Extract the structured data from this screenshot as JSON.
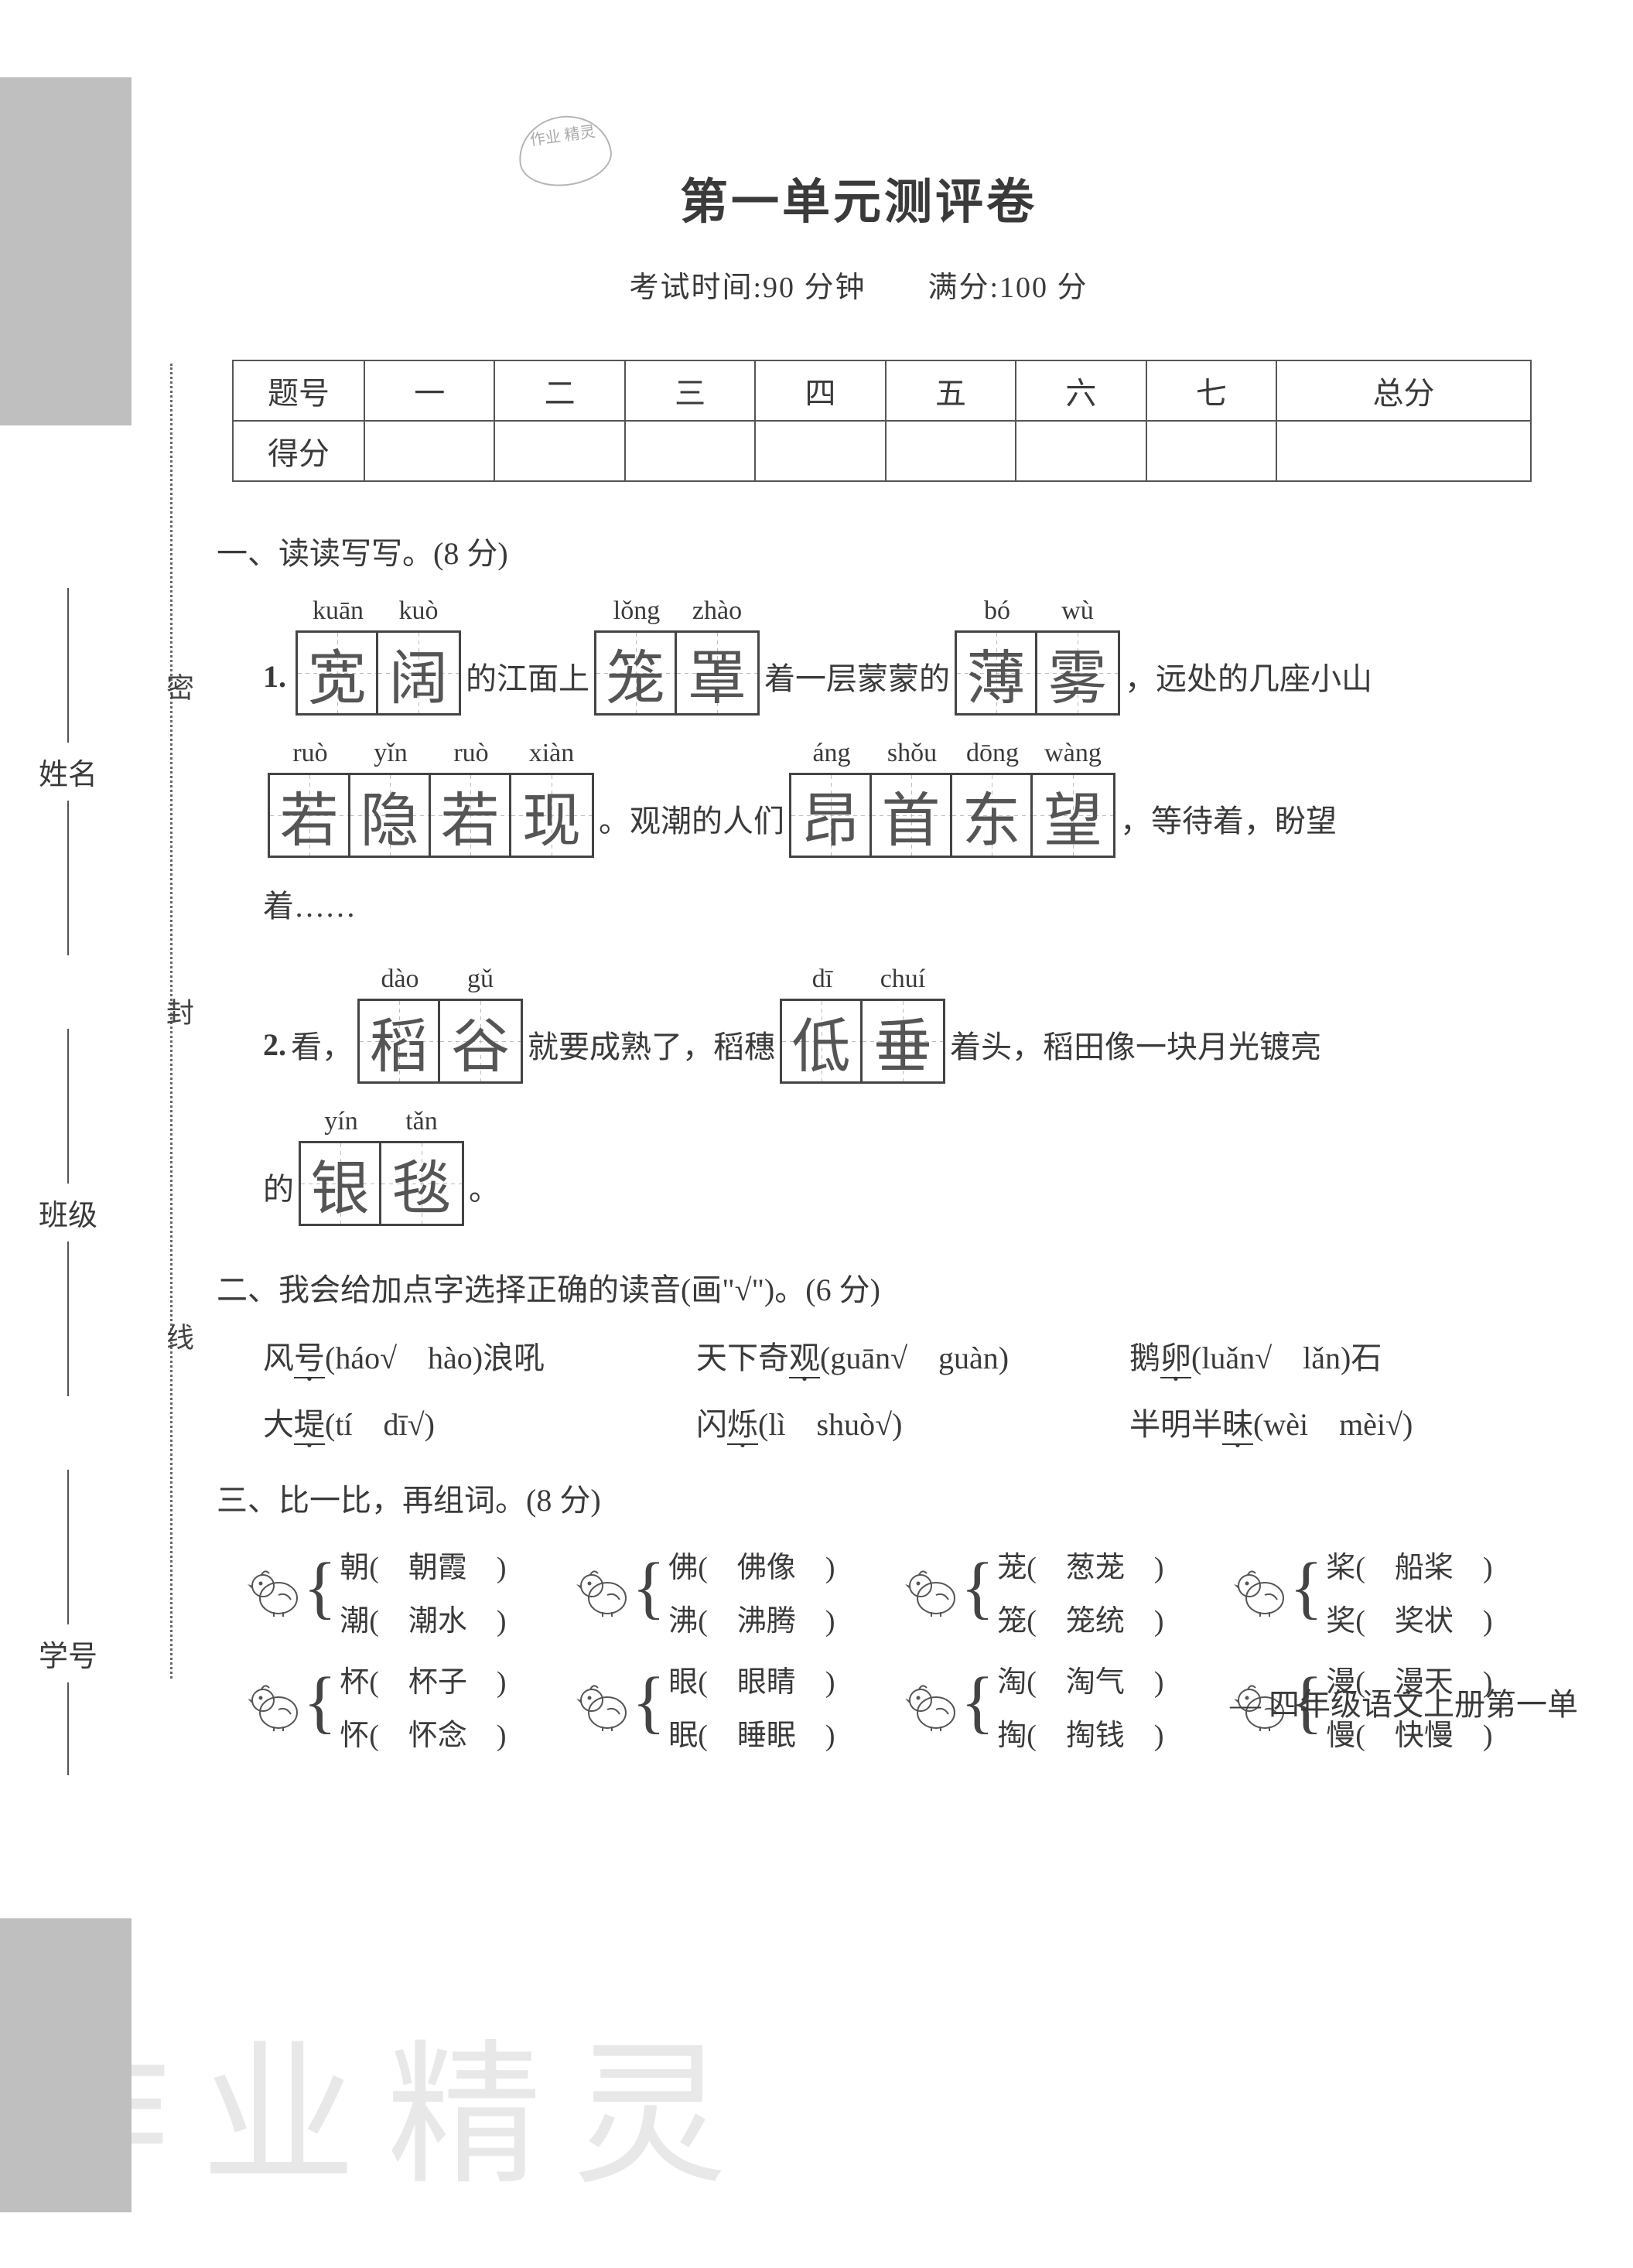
{
  "stamp": "作业\n精灵",
  "title": "第一单元测评卷",
  "subtitle": "考试时间:90 分钟　　满分:100 分",
  "score_table": {
    "headers": [
      "题号",
      "一",
      "二",
      "三",
      "四",
      "五",
      "六",
      "七",
      "总分"
    ],
    "row2_label": "得分"
  },
  "section1": {
    "heading": "一、读读写写。(8 分)",
    "q1": {
      "num": "1.",
      "g1_pinyin": [
        "kuān",
        "kuò"
      ],
      "g1_chars": [
        "宽",
        "阔"
      ],
      "t1": "的江面上",
      "g2_pinyin": [
        "lǒng",
        "zhào"
      ],
      "g2_chars": [
        "笼",
        "罩"
      ],
      "t2": "着一层蒙蒙的",
      "g3_pinyin": [
        "bó",
        "wù"
      ],
      "g3_chars": [
        "薄",
        "雾"
      ],
      "t3": "，远处的几座小山",
      "g4_pinyin": [
        "ruò",
        "yǐn",
        "ruò",
        "xiàn"
      ],
      "g4_chars": [
        "若",
        "隐",
        "若",
        "现"
      ],
      "t4": "。观潮的人们",
      "g5_pinyin": [
        "áng",
        "shǒu",
        "dōng",
        "wàng"
      ],
      "g5_chars": [
        "昂",
        "首",
        "东",
        "望"
      ],
      "t5": "，等待着，盼望",
      "t6": "着……"
    },
    "q2": {
      "num": "2.",
      "t0": "看，",
      "g1_pinyin": [
        "dào",
        "gǔ"
      ],
      "g1_chars": [
        "稻",
        "谷"
      ],
      "t1": "就要成熟了，稻穗",
      "g2_pinyin": [
        "dī",
        "chuí"
      ],
      "g2_chars": [
        "低",
        "垂"
      ],
      "t2": "着头，稻田像一块月光镀亮",
      "t3": "的",
      "g3_pinyin": [
        "yín",
        "tǎn"
      ],
      "g3_chars": [
        "银",
        "毯"
      ],
      "t4": "。"
    }
  },
  "section2": {
    "heading": "二、我会给加点字选择正确的读音(画\"√\")。(6 分)",
    "items": [
      {
        "pre": "风",
        "dot": "号",
        "opts": "(háo√　hào)浪吼"
      },
      {
        "pre": "天下奇",
        "dot": "观",
        "opts": "(guān√　guàn)"
      },
      {
        "pre": "鹅",
        "dot": "卵",
        "opts": "(luǎn√　lǎn)石"
      },
      {
        "pre": "大",
        "dot": "堤",
        "opts": "(tí　dī√)"
      },
      {
        "pre": "闪",
        "dot": "烁",
        "opts": "(lì　shuò√)"
      },
      {
        "pre": "半明半",
        "dot": "昧",
        "opts": "(wèi　mèi√)"
      }
    ]
  },
  "section3": {
    "heading": "三、比一比，再组词。(8 分)",
    "pairs": [
      {
        "a": "朝(　朝霞　)",
        "b": "潮(　潮水　)"
      },
      {
        "a": "佛(　佛像　)",
        "b": "沸(　沸腾　)"
      },
      {
        "a": "茏(　葱茏　)",
        "b": "笼(　笼统　)"
      },
      {
        "a": "桨(　船桨　)",
        "b": "奖(　奖状　)"
      },
      {
        "a": "杯(　杯子　)",
        "b": "怀(　怀念　)"
      },
      {
        "a": "眼(　眼睛　)",
        "b": "眠(　睡眠　)"
      },
      {
        "a": "淘(　淘气　)",
        "b": "掏(　掏钱　)"
      },
      {
        "a": "漫(　漫天　)",
        "b": "慢(　快慢　)"
      }
    ]
  },
  "margin": {
    "mi": "密",
    "feng": "封",
    "xian": "线",
    "xingming": "姓名",
    "banji": "班级",
    "xuehao": "学号"
  },
  "footer": "— 四年级语文上册第一单",
  "watermark": "作业精灵",
  "colors": {
    "text": "#3a3a3a",
    "border": "#444444",
    "gray_block": "#bfbfbf",
    "watermark": "#e8e8e8"
  }
}
